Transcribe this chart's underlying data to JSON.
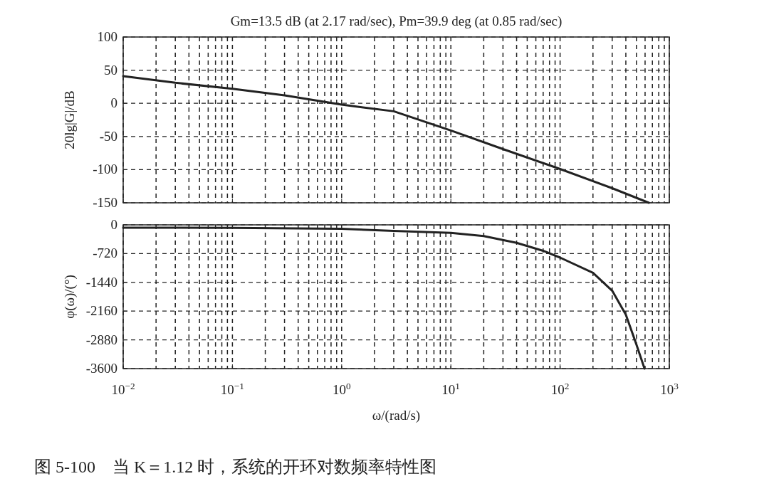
{
  "chart_data": [
    {
      "type": "line",
      "title": "Gm=13.5 dB (at 2.17 rad/sec), Pm=39.9 deg (at 0.85 rad/sec)",
      "ylabel": "20lg|G|/dB",
      "log": "x",
      "grid": true,
      "line_style": "solid",
      "tick_labels": "y",
      "xlim": [
        0.01,
        1000
      ],
      "ylim": [
        -150,
        100
      ],
      "yticks": [
        -150,
        -100,
        -50,
        0,
        50,
        100
      ],
      "xticks": [
        {
          "value": 0.01,
          "label": null
        },
        {
          "value": 0.1,
          "label": null
        },
        {
          "value": 1,
          "label": null
        },
        {
          "value": 10,
          "label": null
        },
        {
          "value": 100,
          "label": null
        },
        {
          "value": 1000,
          "label": null
        }
      ],
      "series": [
        {
          "color": "#222222",
          "x": [
            0.01,
            0.03,
            0.1,
            0.3,
            0.85,
            1,
            3,
            10,
            30,
            100,
            300,
            650
          ],
          "values": [
            41,
            31,
            22,
            12,
            0,
            -2,
            -12,
            -41,
            -69,
            -99,
            -128,
            -150
          ]
        }
      ]
    },
    {
      "type": "line",
      "ylabel": "φ(ω)/(°)",
      "xlabel": "ω/(rad/s)",
      "log": "x",
      "grid": true,
      "line_style": "solid",
      "xlim": [
        0.01,
        1000
      ],
      "ylim": [
        -3600,
        0
      ],
      "yticks": [
        -3600,
        -2880,
        -2160,
        -1440,
        -720,
        0
      ],
      "xticks": [
        {
          "value": 0.01,
          "label": "10$^{−2}$"
        },
        {
          "value": 0.1,
          "label": "10$^{−1}$"
        },
        {
          "value": 1,
          "label": "10$^{0}$"
        },
        {
          "value": 10,
          "label": "10$^{1}$"
        },
        {
          "value": 100,
          "label": "10$^{2}$"
        },
        {
          "value": 1000,
          "label": "10$^{3}$"
        }
      ],
      "series": [
        {
          "color": "#222222",
          "x": [
            0.01,
            0.1,
            1,
            3,
            10,
            20,
            40,
            70,
            100,
            200,
            300,
            400,
            500,
            593
          ],
          "values": [
            -70,
            -75,
            -100,
            -150,
            -200,
            -280,
            -450,
            -650,
            -820,
            -1200,
            -1650,
            -2250,
            -3000,
            -3600
          ]
        }
      ],
      "annotations": [
        "图 5-100　当 K＝1.12 时，系统的开环对数频率特性图"
      ]
    }
  ]
}
